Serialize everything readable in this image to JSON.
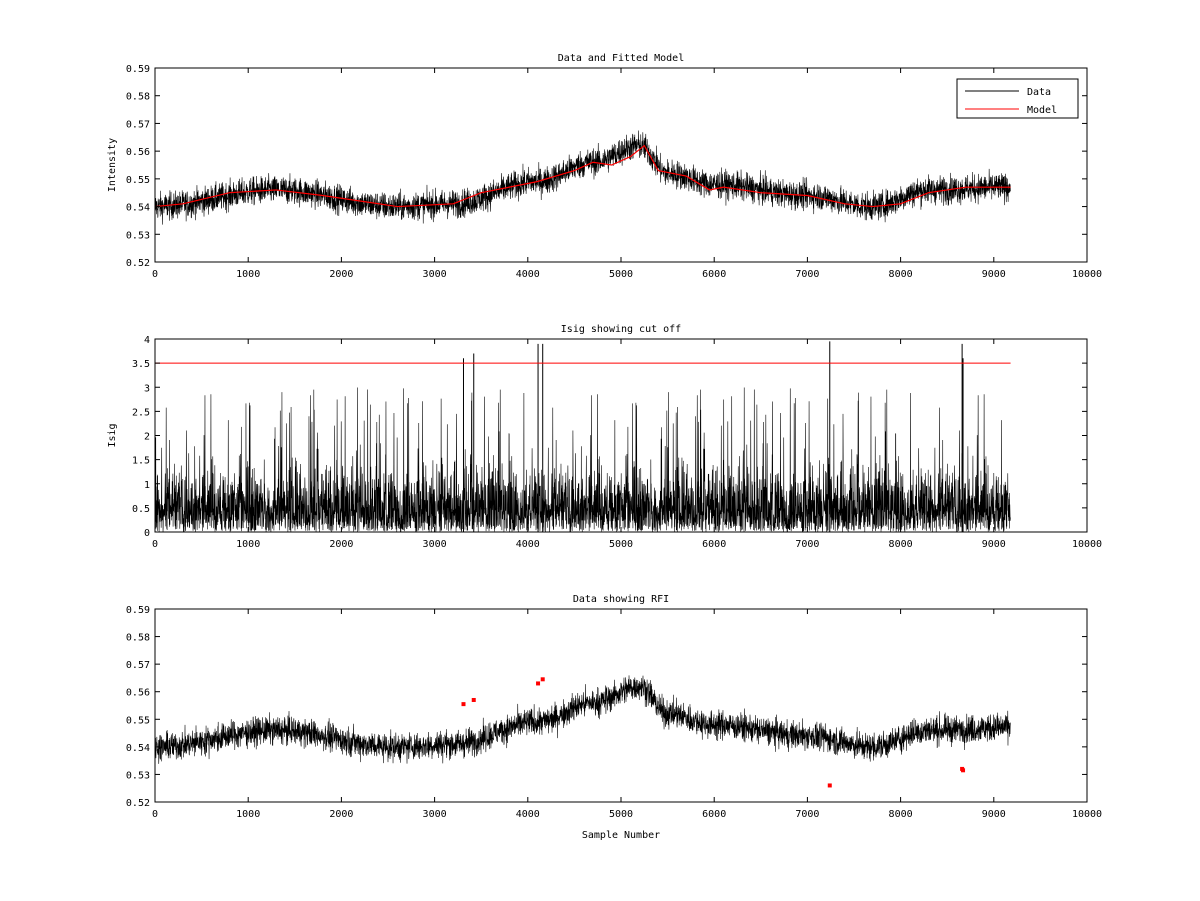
{
  "chart_data": [
    {
      "type": "line",
      "title": "Data and Fitted Model",
      "xlabel": "",
      "ylabel": "Intensity",
      "xlim": [
        0,
        10000
      ],
      "ylim": [
        0.52,
        0.59
      ],
      "xticks": [
        0,
        1000,
        2000,
        3000,
        4000,
        5000,
        6000,
        7000,
        8000,
        9000,
        10000
      ],
      "yticks": [
        "0.52",
        "0.53",
        "0.54",
        "0.55",
        "0.56",
        "0.57",
        "0.58",
        "0.59"
      ],
      "legend": {
        "placement": "top-right",
        "entries": [
          "Data",
          "Model"
        ]
      },
      "colors": {
        "data": "#000000",
        "model": "#ff0000"
      },
      "series": [
        {
          "name": "Data",
          "color": "#000000",
          "sample_count": 9180,
          "noise_amplitude": 0.0045,
          "baseline": {
            "x": [
              0,
              1300,
              2600,
              3200,
              4100,
              4700,
              5200,
              5500,
              6000,
              7000,
              7700,
              8300,
              9180
            ],
            "y": [
              0.54,
              0.546,
              0.54,
              0.541,
              0.549,
              0.556,
              0.562,
              0.552,
              0.548,
              0.544,
              0.54,
              0.546,
              0.547
            ]
          }
        },
        {
          "name": "Model",
          "color": "#ff0000",
          "x": [
            0,
            300,
            800,
            1300,
            1800,
            2600,
            3200,
            3500,
            4100,
            4500,
            4700,
            4900,
            5100,
            5250,
            5400,
            5700,
            5950,
            6100,
            6500,
            7000,
            7400,
            7700,
            8000,
            8300,
            8700,
            9180
          ],
          "y": [
            0.54,
            0.541,
            0.545,
            0.546,
            0.544,
            0.54,
            0.541,
            0.545,
            0.549,
            0.553,
            0.556,
            0.555,
            0.558,
            0.562,
            0.553,
            0.551,
            0.546,
            0.547,
            0.545,
            0.544,
            0.541,
            0.54,
            0.541,
            0.545,
            0.547,
            0.547
          ]
        }
      ]
    },
    {
      "type": "line",
      "title": "Isig showing cut off",
      "xlabel": "",
      "ylabel": "Isig",
      "xlim": [
        0,
        10000
      ],
      "ylim": [
        0,
        4
      ],
      "xticks": [
        0,
        1000,
        2000,
        3000,
        4000,
        5000,
        6000,
        7000,
        8000,
        9000,
        10000
      ],
      "yticks": [
        "0",
        "0.5",
        "1",
        "1.5",
        "2",
        "2.5",
        "3",
        "3.5",
        "4"
      ],
      "cutoff": {
        "y": 3.5,
        "x": [
          0,
          9180
        ],
        "color": "#ff0000"
      },
      "series": [
        {
          "name": "Isig",
          "color": "#000000",
          "sample_count": 9180,
          "typical_max": 2.0,
          "spikes": [
            {
              "x": 3310,
              "y": 3.6
            },
            {
              "x": 3420,
              "y": 3.7
            },
            {
              "x": 4110,
              "y": 3.9
            },
            {
              "x": 4160,
              "y": 3.9
            },
            {
              "x": 7240,
              "y": 3.95
            },
            {
              "x": 8660,
              "y": 3.9
            },
            {
              "x": 8670,
              "y": 3.6
            }
          ]
        }
      ]
    },
    {
      "type": "line",
      "title": "Data showing RFI",
      "xlabel": "Sample Number",
      "ylabel": "",
      "xlim": [
        0,
        10000
      ],
      "ylim": [
        0.52,
        0.59
      ],
      "xticks": [
        0,
        1000,
        2000,
        3000,
        4000,
        5000,
        6000,
        7000,
        8000,
        9000,
        10000
      ],
      "yticks": [
        "0.52",
        "0.53",
        "0.54",
        "0.55",
        "0.56",
        "0.57",
        "0.58",
        "0.59"
      ],
      "series": [
        {
          "name": "Data",
          "color": "#000000",
          "sample_count": 9180,
          "noise_amplitude": 0.0045,
          "baseline": {
            "x": [
              0,
              1300,
              2600,
              3200,
              4100,
              4700,
              5200,
              5500,
              6000,
              7000,
              7700,
              8300,
              9180
            ],
            "y": [
              0.54,
              0.546,
              0.54,
              0.541,
              0.549,
              0.556,
              0.562,
              0.552,
              0.548,
              0.544,
              0.54,
              0.546,
              0.547
            ]
          }
        },
        {
          "name": "RFI",
          "color": "#ff0000",
          "marker": "dot",
          "x": [
            3310,
            3420,
            4110,
            4160,
            7240,
            8660,
            8670
          ],
          "y": [
            0.5555,
            0.557,
            0.563,
            0.5645,
            0.526,
            0.532,
            0.5315
          ]
        }
      ]
    }
  ]
}
